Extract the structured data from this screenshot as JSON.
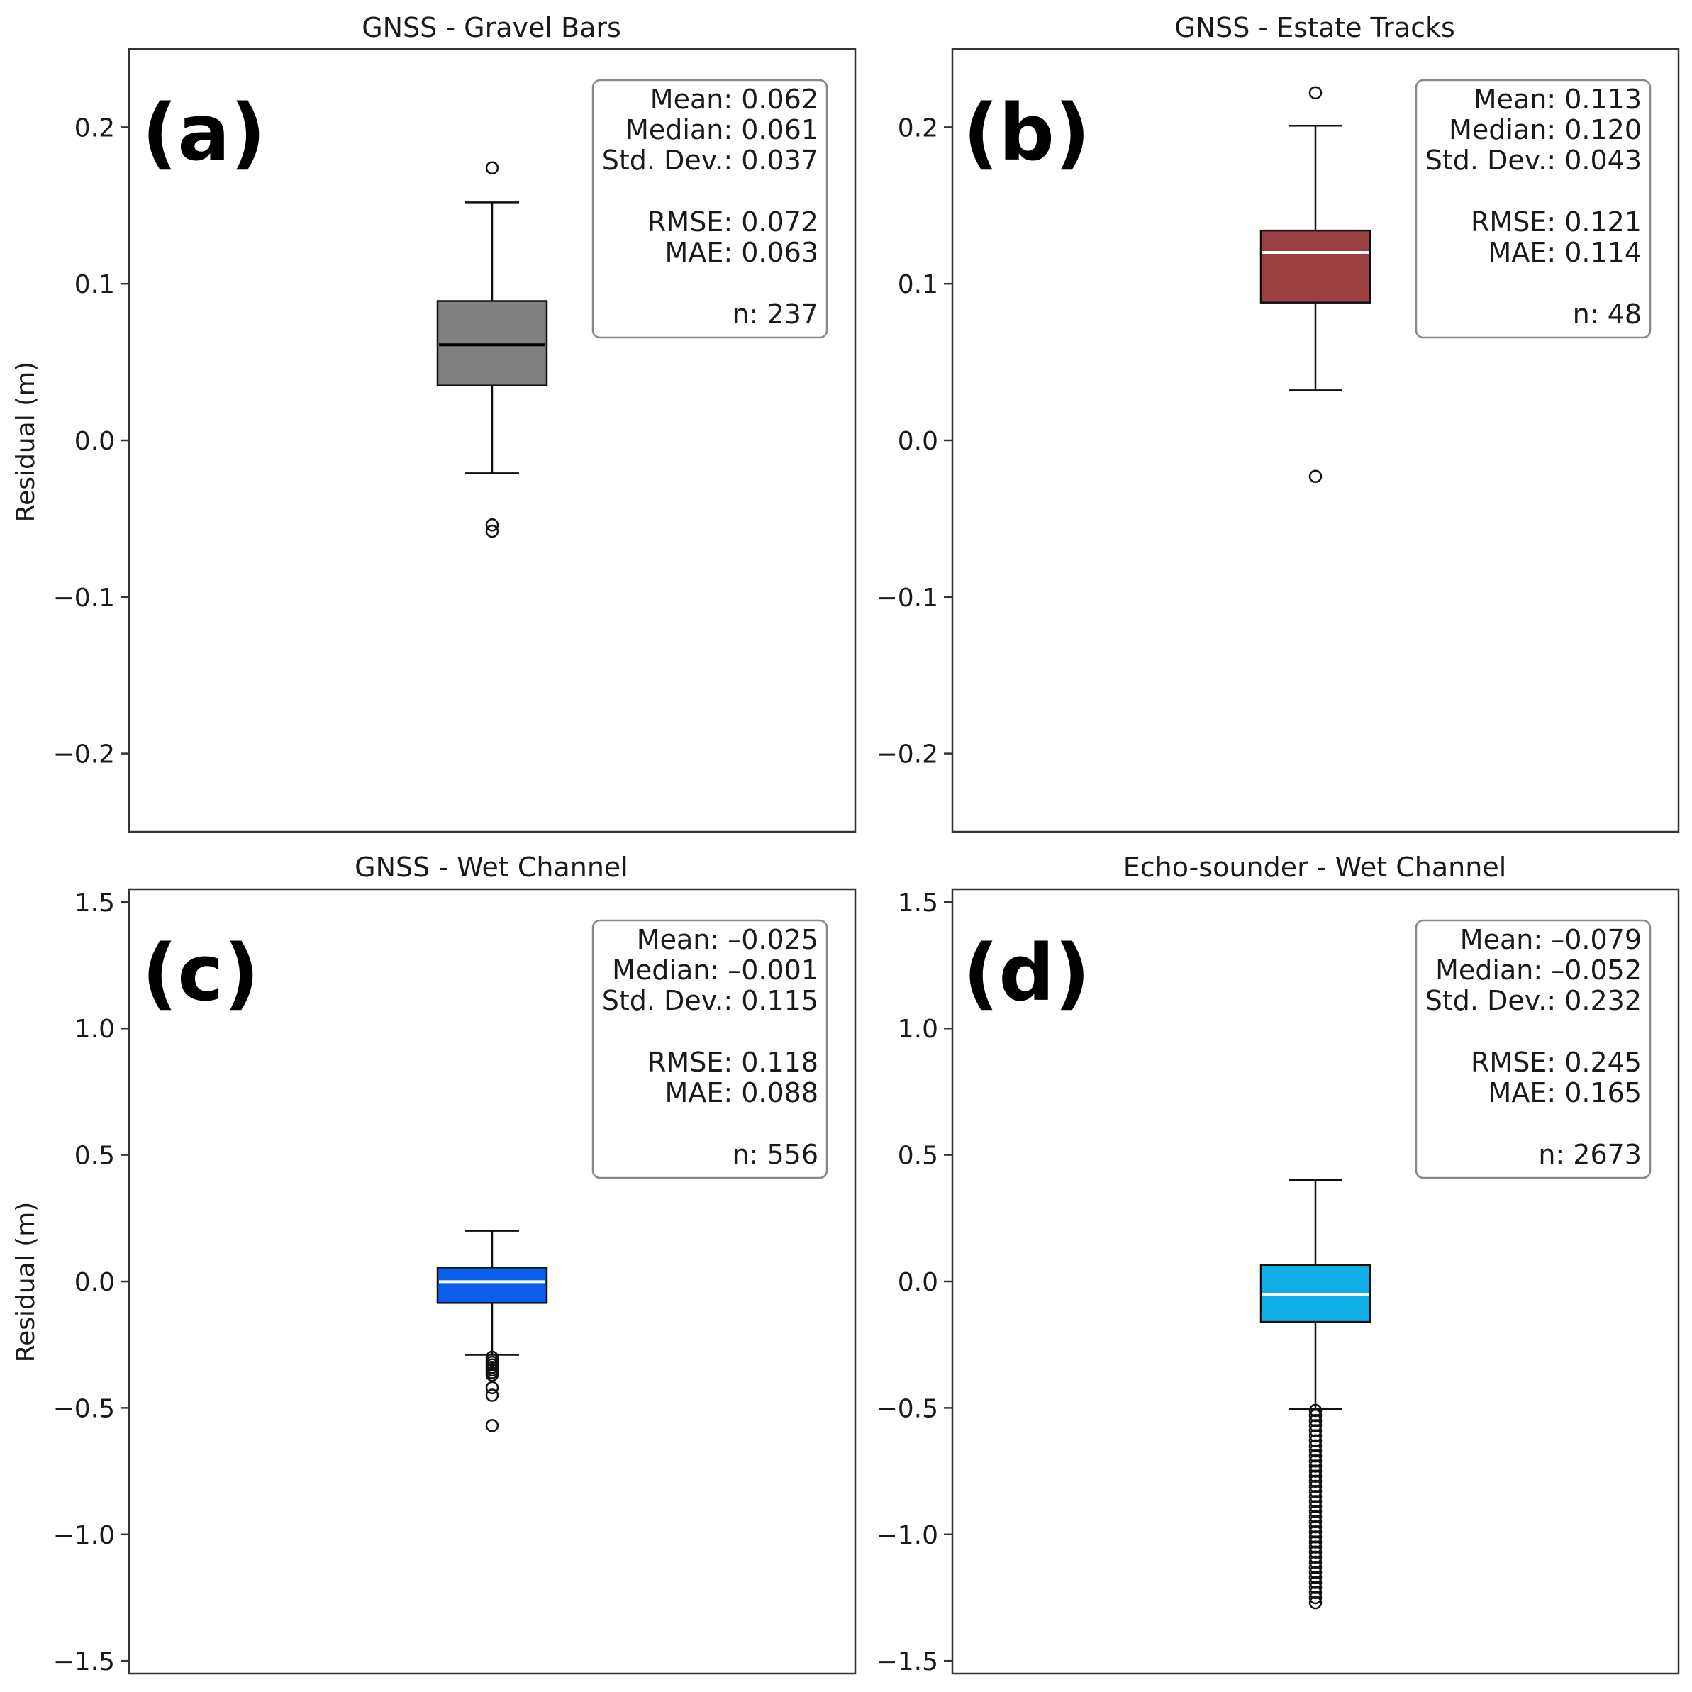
{
  "chart_data": [
    {
      "type": "box",
      "panel_label": "(a)",
      "title": "GNSS - Gravel Bars",
      "ylabel": "Residual (m)",
      "ylim": [
        -0.25,
        0.25
      ],
      "yticks": [
        -0.2,
        -0.1,
        0.0,
        0.1,
        0.2
      ],
      "ytick_labels": [
        "−0.2",
        "−0.1",
        "0.0",
        "0.1",
        "0.2"
      ],
      "box_color": "#808080",
      "median_color": "#000000",
      "box": {
        "q1": 0.035,
        "median": 0.061,
        "q3": 0.089,
        "whisker_low": -0.021,
        "whisker_high": 0.152
      },
      "outliers": [
        0.174,
        -0.054,
        -0.058
      ],
      "stats": [
        "Mean: 0.062",
        "Median: 0.061",
        "Std. Dev.: 0.037",
        "",
        "RMSE: 0.072",
        "MAE: 0.063",
        "",
        "n: 237"
      ]
    },
    {
      "type": "box",
      "panel_label": "(b)",
      "title": "GNSS - Estate Tracks",
      "ylabel": "",
      "ylim": [
        -0.25,
        0.25
      ],
      "yticks": [
        -0.2,
        -0.1,
        0.0,
        0.1,
        0.2
      ],
      "ytick_labels": [
        "−0.2",
        "−0.1",
        "0.0",
        "0.1",
        "0.2"
      ],
      "box_color": "#9b4040",
      "median_color": "#ffffff",
      "box": {
        "q1": 0.088,
        "median": 0.12,
        "q3": 0.134,
        "whisker_low": 0.032,
        "whisker_high": 0.201
      },
      "outliers": [
        0.222,
        -0.023
      ],
      "stats": [
        "Mean: 0.113",
        "Median: 0.120",
        "Std. Dev.: 0.043",
        "",
        "RMSE: 0.121",
        "MAE: 0.114",
        "",
        "n: 48"
      ]
    },
    {
      "type": "box",
      "panel_label": "(c)",
      "title": "GNSS - Wet Channel",
      "ylabel": "Residual (m)",
      "ylim": [
        -1.55,
        1.55
      ],
      "yticks": [
        -1.5,
        -1.0,
        -0.5,
        0.0,
        0.5,
        1.0,
        1.5
      ],
      "ytick_labels": [
        "−1.5",
        "−1.0",
        "−0.5",
        "0.0",
        "0.5",
        "1.0",
        "1.5"
      ],
      "box_color": "#0a5ee8",
      "median_color": "#ffffff",
      "box": {
        "q1": -0.085,
        "median": -0.001,
        "q3": 0.055,
        "whisker_low": -0.29,
        "whisker_high": 0.2
      },
      "outliers": [
        -0.3,
        -0.31,
        -0.32,
        -0.33,
        -0.34,
        -0.35,
        -0.36,
        -0.37,
        -0.42,
        -0.45,
        -0.57
      ],
      "stats": [
        "Mean: –0.025",
        "Median: –0.001",
        "Std. Dev.: 0.115",
        "",
        "RMSE: 0.118",
        "MAE: 0.088",
        "",
        "n: 556"
      ]
    },
    {
      "type": "box",
      "panel_label": "(d)",
      "title": "Echo-sounder - Wet Channel",
      "ylabel": "",
      "ylim": [
        -1.55,
        1.55
      ],
      "yticks": [
        -1.5,
        -1.0,
        -0.5,
        0.0,
        0.5,
        1.0,
        1.5
      ],
      "ytick_labels": [
        "−1.5",
        "−1.0",
        "−0.5",
        "0.0",
        "0.5",
        "1.0",
        "1.5"
      ],
      "box_color": "#12aee8",
      "median_color": "#ffffff",
      "box": {
        "q1": -0.16,
        "median": -0.052,
        "q3": 0.065,
        "whisker_low": -0.505,
        "whisker_high": 0.4
      },
      "outliers": [
        -0.51,
        -0.53,
        -0.55,
        -0.57,
        -0.59,
        -0.61,
        -0.63,
        -0.65,
        -0.67,
        -0.69,
        -0.71,
        -0.73,
        -0.75,
        -0.77,
        -0.79,
        -0.81,
        -0.83,
        -0.85,
        -0.87,
        -0.89,
        -0.91,
        -0.93,
        -0.95,
        -0.97,
        -0.99,
        -1.01,
        -1.03,
        -1.05,
        -1.07,
        -1.09,
        -1.11,
        -1.13,
        -1.15,
        -1.17,
        -1.19,
        -1.21,
        -1.23,
        -1.25,
        -1.27
      ],
      "stats": [
        "Mean: –0.079",
        "Median: –0.052",
        "Std. Dev.: 0.232",
        "",
        "RMSE: 0.245",
        "MAE: 0.165",
        "",
        "n: 2673"
      ]
    }
  ]
}
